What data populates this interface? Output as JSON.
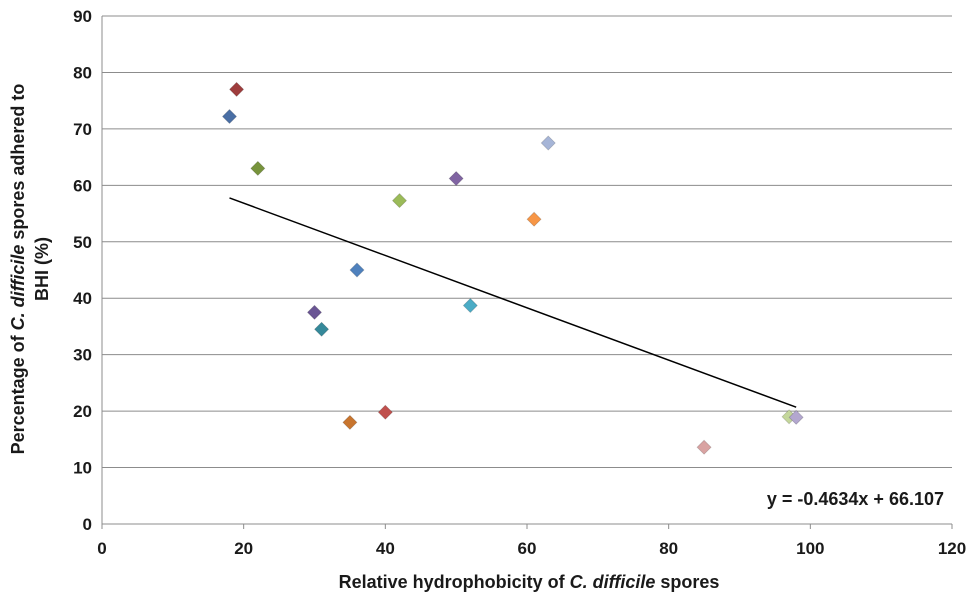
{
  "chart_data": {
    "type": "scatter",
    "xlabel_parts": [
      {
        "text": "Relative hydrophobicity of ",
        "italic": false
      },
      {
        "text": "C. difficile",
        "italic": true
      },
      {
        "text": " spores",
        "italic": false
      }
    ],
    "ylabel_line1_parts": [
      {
        "text": "Percentage of ",
        "italic": false
      },
      {
        "text": "C. difficile",
        "italic": true
      },
      {
        "text": " spores adhered to",
        "italic": false
      }
    ],
    "ylabel_line2": "BHI (%)",
    "xlim": [
      0,
      120
    ],
    "ylim": [
      0,
      90
    ],
    "x_ticks": [
      0,
      20,
      40,
      60,
      80,
      100,
      120
    ],
    "y_ticks": [
      0,
      10,
      20,
      30,
      40,
      50,
      60,
      70,
      80,
      90
    ],
    "grid": {
      "horizontal": true,
      "vertical": false
    },
    "marker": "diamond",
    "points": [
      {
        "x": 18,
        "y": 72.2,
        "color": "#4a6fa5"
      },
      {
        "x": 19,
        "y": 77,
        "color": "#9e3d3d"
      },
      {
        "x": 22,
        "y": 63,
        "color": "#77933c"
      },
      {
        "x": 30,
        "y": 37.5,
        "color": "#6a5594"
      },
      {
        "x": 31,
        "y": 34.5,
        "color": "#35899a"
      },
      {
        "x": 35,
        "y": 18,
        "color": "#c8752e"
      },
      {
        "x": 36,
        "y": 45,
        "color": "#4f81bd"
      },
      {
        "x": 40,
        "y": 19.8,
        "color": "#c0504d"
      },
      {
        "x": 42,
        "y": 57.3,
        "color": "#9bbb59"
      },
      {
        "x": 50,
        "y": 61.2,
        "color": "#8064a2"
      },
      {
        "x": 52,
        "y": 38.7,
        "color": "#4bacc6"
      },
      {
        "x": 61,
        "y": 54,
        "color": "#f79646"
      },
      {
        "x": 63,
        "y": 67.5,
        "color": "#a6b5d7"
      },
      {
        "x": 85,
        "y": 13.6,
        "color": "#d9a3a2"
      },
      {
        "x": 97,
        "y": 19,
        "color": "#c4d79b"
      },
      {
        "x": 98,
        "y": 18.9,
        "color": "#b3a7cf"
      }
    ],
    "trendline": {
      "slope": -0.4634,
      "intercept": 66.107,
      "x_range": [
        18,
        98
      ],
      "color": "#000000",
      "equation": "y = -0.4634x + 66.107"
    }
  }
}
